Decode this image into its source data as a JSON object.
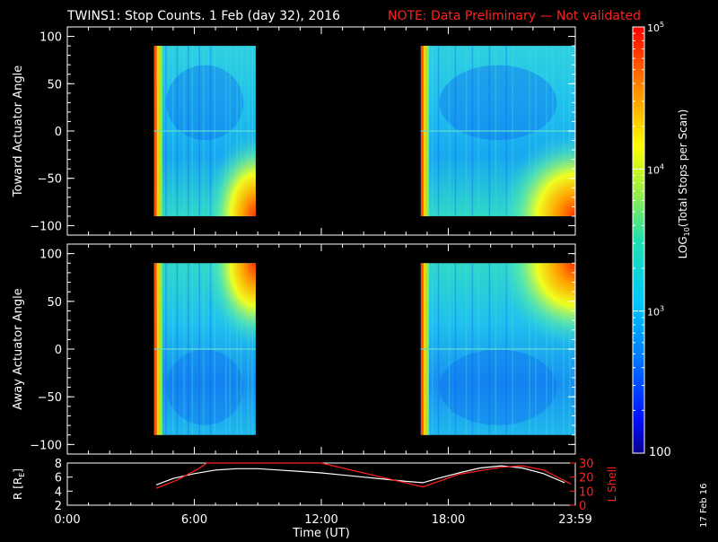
{
  "title": {
    "main": "TWINS1: Stop Counts.  1 Feb (day  32), 2016",
    "note": "NOTE: Data Preliminary — Not validated",
    "note_color": "#ff2020"
  },
  "side_label": "17 Feb 16",
  "chart_data": [
    {
      "type": "heatmap",
      "ylabel": "Toward Actuator Angle",
      "ylim": [
        -110,
        110
      ],
      "yticks": [
        "100",
        "50",
        "0",
        "−50",
        "−100"
      ],
      "ytick_values": [
        100,
        50,
        0,
        -50,
        -100
      ],
      "x_range_hours": [
        0,
        24
      ],
      "data_blocks_hours": [
        [
          4.1,
          8.9
        ],
        [
          16.7,
          24.0
        ]
      ],
      "colormap": "rainbow-log",
      "dominant_color": "#1ab8e6"
    },
    {
      "type": "heatmap",
      "ylabel": "Away Actuator Angle",
      "ylim": [
        -110,
        110
      ],
      "yticks": [
        "100",
        "50",
        "0",
        "−50",
        "−100"
      ],
      "ytick_values": [
        100,
        50,
        0,
        -50,
        -100
      ],
      "x_range_hours": [
        0,
        24
      ],
      "data_blocks_hours": [
        [
          4.1,
          8.9
        ],
        [
          16.7,
          24.0
        ]
      ],
      "colormap": "rainbow-log",
      "dominant_color": "#1ab8e6"
    },
    {
      "type": "line",
      "ylabel_left": "R [R",
      "ylabel_left_sub": "E",
      "ylabel_left_end": "]",
      "ylabel_right": "L Shell",
      "ylim_left": [
        2,
        8
      ],
      "ylim_right": [
        0,
        30
      ],
      "left_ticks": [
        "8",
        "6",
        "4",
        "2"
      ],
      "left_tick_values": [
        8,
        6,
        4,
        2
      ],
      "right_ticks": [
        "30",
        "20",
        "10",
        "0"
      ],
      "right_tick_values": [
        30,
        20,
        10,
        0
      ],
      "xlabel": "Time (UT)",
      "x_ticks": [
        "0:00",
        "6:00",
        "12:00",
        "18:00",
        "23:59"
      ],
      "x_tick_values": [
        0,
        6,
        12,
        18,
        24
      ],
      "series": [
        {
          "name": "R",
          "color": "#ffffff",
          "x": [
            4.2,
            5,
            6,
            7,
            8,
            9,
            10,
            11,
            12,
            13,
            14,
            15,
            16,
            16.8,
            17.5,
            18.5,
            19.5,
            20.5,
            21.5,
            22.5,
            23.5
          ],
          "y": [
            4.9,
            5.8,
            6.5,
            7.0,
            7.2,
            7.2,
            7.0,
            6.8,
            6.6,
            6.3,
            6.0,
            5.7,
            5.4,
            5.2,
            5.8,
            6.6,
            7.3,
            7.6,
            7.3,
            6.5,
            5.2
          ]
        },
        {
          "name": "L Shell",
          "color": "#ff2020",
          "x": [
            4.2,
            5.2,
            6.2,
            6.6,
            11.9,
            12.0,
            16.8,
            18.5,
            20.5,
            21.5,
            22.5,
            23.8
          ],
          "y": [
            12,
            18,
            26,
            30,
            30,
            30,
            13,
            22,
            27,
            28,
            25,
            15
          ]
        }
      ]
    }
  ],
  "colorbar": {
    "label_prefix": "LOG",
    "label_sub": "10",
    "label_suffix": "(Total Stops per Scan)",
    "ticks": [
      {
        "base": "10",
        "exp": "5",
        "value": 100000
      },
      {
        "base": "10",
        "exp": "4",
        "value": 10000
      },
      {
        "base": "10",
        "exp": "3",
        "value": 1000
      }
    ],
    "bottom_label": "100",
    "bottom_value": 100
  }
}
